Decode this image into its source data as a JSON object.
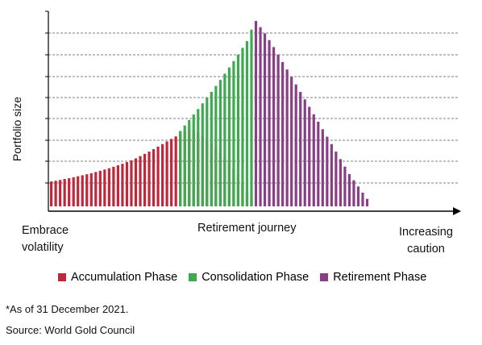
{
  "chart_data": {
    "type": "bar",
    "ylabel": "Portfolio size",
    "xlabel": "Retirement journey",
    "left_label": [
      "Embrace",
      "volatility"
    ],
    "right_label": [
      "Increasing",
      "caution"
    ],
    "colors": {
      "accumulation": "#c0273a",
      "consolidation": "#3eaa50",
      "retirement": "#8a3e86"
    },
    "series": [
      {
        "name": "Accumulation Phase",
        "color": "#c0273a",
        "values": [
          1.0,
          1.03,
          1.06,
          1.1,
          1.13,
          1.17,
          1.21,
          1.25,
          1.29,
          1.33,
          1.38,
          1.43,
          1.48,
          1.53,
          1.59,
          1.65,
          1.71,
          1.78,
          1.85,
          1.93,
          2.02,
          2.11,
          2.2,
          2.3,
          2.4,
          2.5,
          2.61,
          2.71,
          2.81,
          2.91,
          3.01,
          3.07,
          3.05,
          2.95,
          2.82,
          2.68,
          2.53,
          2.36,
          2.18,
          1.98,
          1.76,
          1.52,
          1.26,
          0.97,
          0.62,
          0.35
        ]
      },
      {
        "name": "Consolidation Phase",
        "start_index": 29,
        "color": "#3eaa50",
        "values": [
          3.03,
          3.25,
          3.47,
          3.69,
          3.91,
          4.14,
          4.37,
          4.6,
          4.84,
          5.08,
          5.33,
          5.58,
          5.84,
          6.1,
          6.37,
          6.64,
          7.1
        ]
      },
      {
        "name": "Retirement Phase",
        "start_index": 46,
        "color": "#8a3e86",
        "values": [
          7.45,
          7.2,
          6.95,
          6.68,
          6.4,
          6.1,
          5.8,
          5.5,
          5.2,
          4.9,
          4.6,
          4.3,
          4.0,
          3.7,
          3.4,
          3.1,
          2.8,
          2.5,
          2.2,
          1.9,
          1.6,
          1.3,
          1.05,
          0.8,
          0.55,
          0.3
        ]
      }
    ],
    "ylim": [
      0,
      7.6
    ],
    "grid": true
  },
  "legend": [
    {
      "label": "Accumulation Phase",
      "color": "#c0273a"
    },
    {
      "label": "Consolidation Phase",
      "color": "#3eaa50"
    },
    {
      "label": "Retirement Phase",
      "color": "#8a3e86"
    }
  ],
  "notes": {
    "date_note": "*As of 31 December 2021.",
    "source": "Source: World Gold Council"
  }
}
